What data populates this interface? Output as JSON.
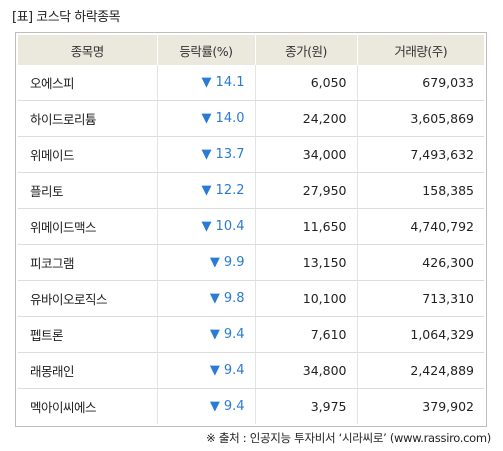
{
  "title": "[표] 코스닥 하락종목",
  "table": {
    "headers": [
      "종목명",
      "등락률(%)",
      "종가(원)",
      "거래량(주)"
    ],
    "down_arrow": "▼",
    "rows": [
      {
        "name": "오에스피",
        "rate": "14.1",
        "price": "6,050",
        "volume": "679,033"
      },
      {
        "name": "하이드로리튬",
        "rate": "14.0",
        "price": "24,200",
        "volume": "3,605,869"
      },
      {
        "name": "위메이드",
        "rate": "13.7",
        "price": "34,000",
        "volume": "7,493,632"
      },
      {
        "name": "플리토",
        "rate": "12.2",
        "price": "27,950",
        "volume": "158,385"
      },
      {
        "name": "위메이드맥스",
        "rate": "10.4",
        "price": "11,650",
        "volume": "4,740,792"
      },
      {
        "name": "피코그램",
        "rate": "9.9",
        "price": "13,150",
        "volume": "426,300"
      },
      {
        "name": "유바이오로직스",
        "rate": "9.8",
        "price": "10,100",
        "volume": "713,310"
      },
      {
        "name": "펩트론",
        "rate": "9.4",
        "price": "7,610",
        "volume": "1,064,329"
      },
      {
        "name": "래몽래인",
        "rate": "9.4",
        "price": "34,800",
        "volume": "2,424,889"
      },
      {
        "name": "멕아이씨에스",
        "rate": "9.4",
        "price": "3,975",
        "volume": "379,902"
      }
    ]
  },
  "source": "※ 출처 : 인공지능 투자비서 ‘시라씨로’ (www.rassiro.com)",
  "colors": {
    "header_bg": "#ebe8de",
    "rate_blue": "#2a7bd4"
  }
}
